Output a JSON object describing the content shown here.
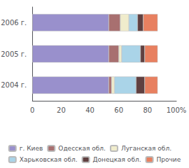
{
  "chart_data": {
    "type": "bar",
    "orientation": "horizontal",
    "stacked": true,
    "categories": [
      "2006 г.",
      "2005 г.",
      "2004 г."
    ],
    "series": [
      {
        "name": "г. Киев",
        "color": "#9990cc",
        "values": [
          53,
          53,
          53
        ]
      },
      {
        "name": "Одесская обл.",
        "color": "#a87070",
        "values": [
          8,
          7,
          2
        ]
      },
      {
        "name": "Луганская обл.",
        "color": "#f0eccc",
        "values": [
          6,
          2,
          2
        ]
      },
      {
        "name": "Харьковская обл.",
        "color": "#aad4e8",
        "values": [
          6,
          13,
          15
        ]
      },
      {
        "name": "Донецкая обл.",
        "color": "#604040",
        "values": [
          4,
          3,
          6
        ]
      },
      {
        "name": "Прочие",
        "color": "#e88060",
        "values": [
          10,
          9,
          9
        ]
      }
    ],
    "xlim": [
      0,
      100
    ],
    "xticks": [
      0,
      20,
      40,
      60,
      80,
      {
        "value": 100,
        "label": "100%"
      }
    ],
    "grid": false,
    "legend": "bottom"
  }
}
